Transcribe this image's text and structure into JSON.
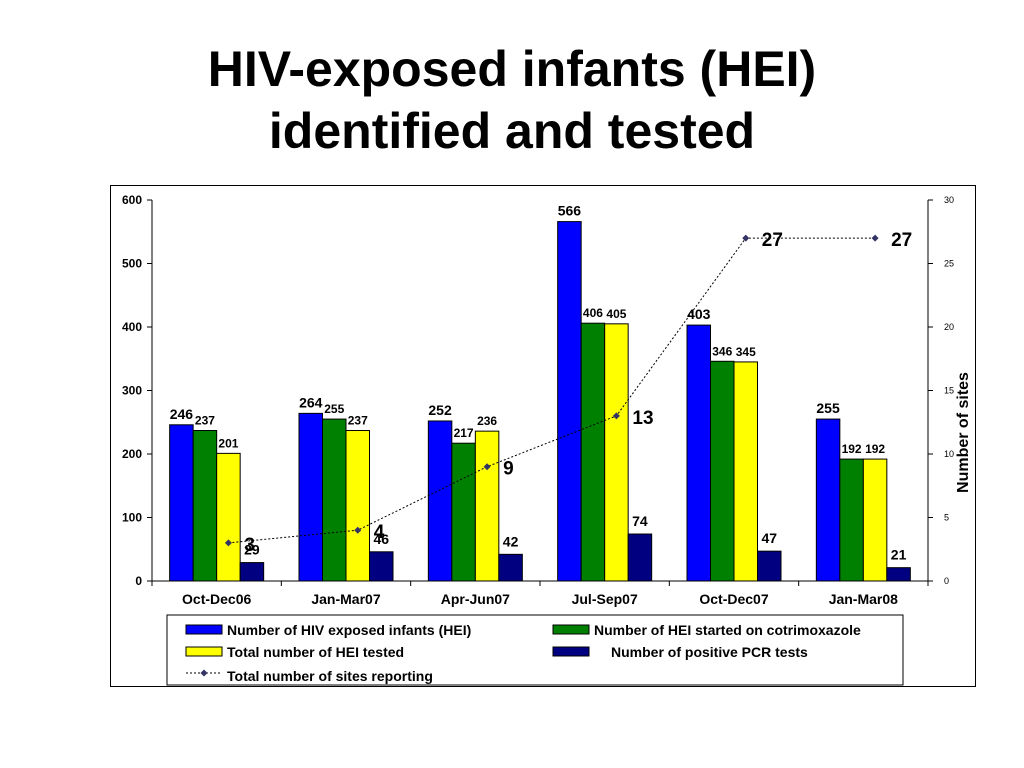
{
  "title_line1": "HIV-exposed infants (HEI)",
  "title_line2": "identified and tested",
  "chart_data": {
    "type": "bar",
    "categories": [
      "Oct-Dec06",
      "Jan-Mar07",
      "Apr-Jun07",
      "Jul-Sep07",
      "Oct-Dec07",
      "Jan-Mar08"
    ],
    "series": [
      {
        "name": "Number of HIV exposed infants (HEI)",
        "color": "#0000ff",
        "values": [
          246,
          264,
          252,
          566,
          403,
          255
        ],
        "axis": "left",
        "labels": [
          "246",
          "264",
          "252",
          "566",
          "403",
          "255"
        ]
      },
      {
        "name": "Number of HEI started on cotrimoxazole",
        "color": "#008000",
        "values": [
          237,
          255,
          217,
          406,
          346,
          192
        ],
        "axis": "left",
        "labels": [
          "237",
          "255",
          "217",
          "406",
          "346",
          "192"
        ]
      },
      {
        "name": "Total number of HEI tested",
        "color": "#ffff00",
        "values": [
          201,
          237,
          236,
          405,
          345,
          192
        ],
        "axis": "left",
        "labels": [
          "201",
          "237",
          "236",
          "405",
          "345",
          "192"
        ]
      },
      {
        "name": "Number of positive PCR tests",
        "color": "#000080",
        "values": [
          29,
          46,
          42,
          74,
          47,
          21
        ],
        "axis": "left",
        "labels": [
          "29",
          "46",
          "42",
          "74",
          "47",
          "21"
        ]
      }
    ],
    "line_series": {
      "name": "Total number of sites reporting",
      "type": "line",
      "axis": "right",
      "values": [
        3,
        4,
        9,
        13,
        27,
        27
      ],
      "labels": [
        "3",
        "4",
        "9",
        "13",
        "27",
        "27"
      ]
    },
    "left_axis": {
      "ylim": [
        0,
        600
      ],
      "ticks": [
        "0",
        "100",
        "200",
        "300",
        "400",
        "500",
        "600"
      ]
    },
    "right_axis": {
      "label": "Number of sites",
      "ylim": [
        0,
        30
      ],
      "ticks": [
        "0",
        "5",
        "10",
        "15",
        "20",
        "25",
        "30"
      ]
    },
    "legend_placement": "bottom",
    "grid": false
  }
}
